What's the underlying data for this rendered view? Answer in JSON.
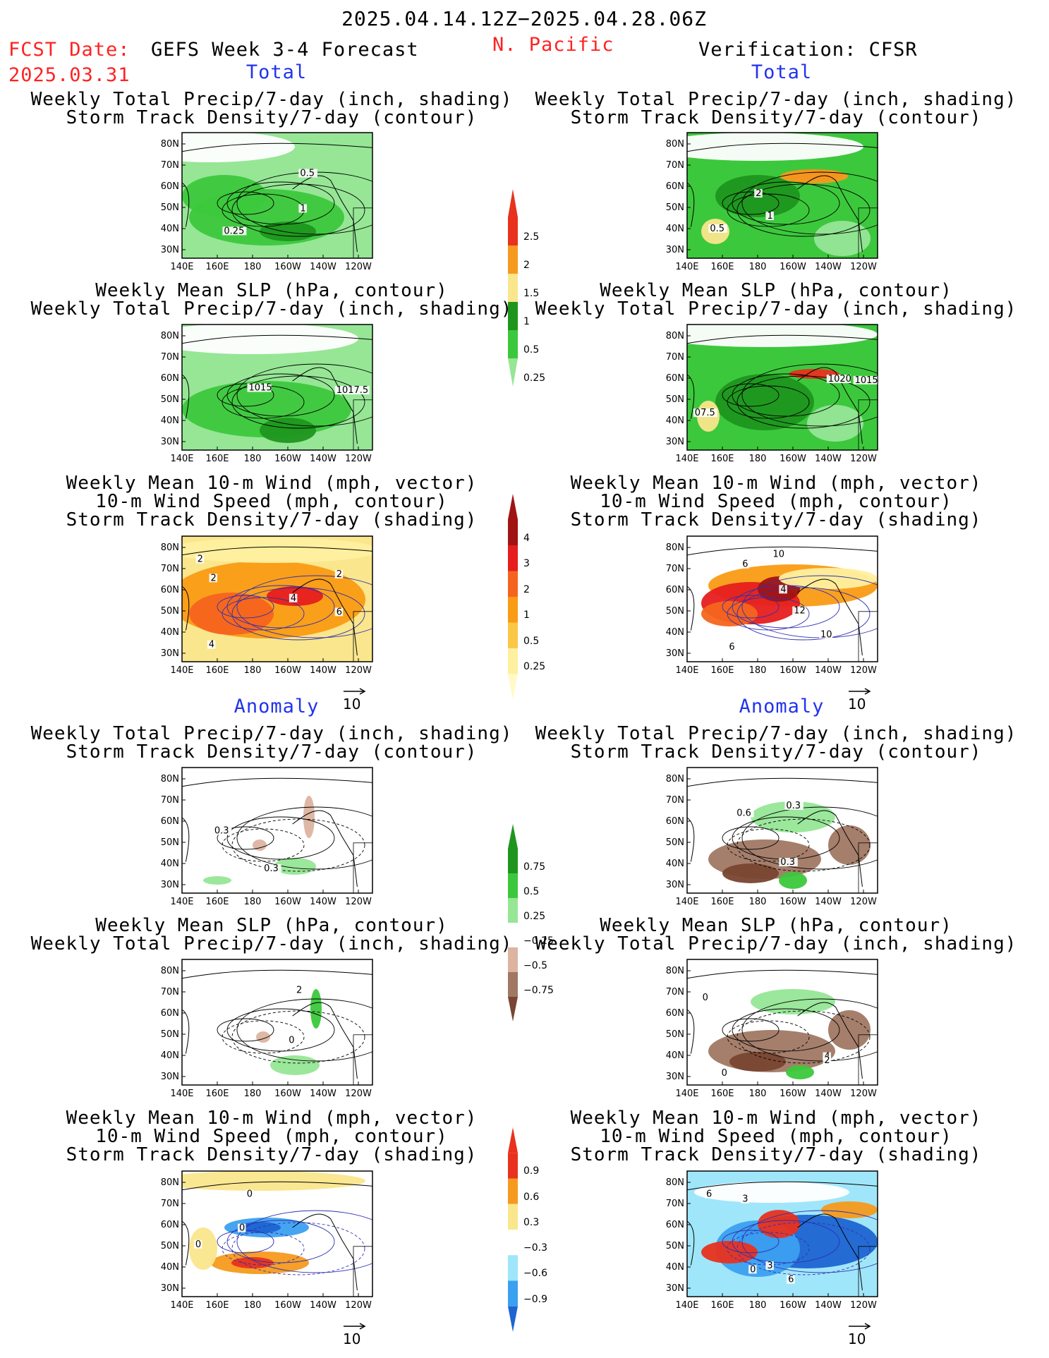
{
  "header": {
    "date_range": "2025.04.14.12Z−2025.04.28.06Z",
    "fcst_label": "FCST Date:",
    "fcst_date": "2025.03.31",
    "product": "GEFS Week 3-4 Forecast",
    "region": "N. Pacific",
    "verification": "Verification: CFSR"
  },
  "sections": {
    "total": "Total",
    "anomaly": "Anomaly"
  },
  "titles": {
    "precip_track": [
      "Weekly Total Precip/7-day (inch, shading)",
      "Storm Track Density/7-day (contour)"
    ],
    "slp_precip": [
      "Weekly Mean SLP (hPa, contour)",
      "Weekly Total Precip/7-day (inch, shading)"
    ],
    "wind_track": [
      "Weekly Mean 10-m Wind (mph, vector)",
      "10-m Wind Speed (mph, contour)",
      "Storm Track Density/7-day (shading)"
    ]
  },
  "axes": {
    "lat": [
      "80N",
      "70N",
      "60N",
      "50N",
      "40N",
      "30N"
    ],
    "lon": [
      "140E",
      "160E",
      "180",
      "160W",
      "140W",
      "120W"
    ]
  },
  "vector_ref": "10",
  "colorbars": {
    "precip_total": {
      "labels": [
        "2.5",
        "2",
        "1.5",
        "1",
        "0.5",
        "0.25"
      ],
      "colors": [
        "#e8321e",
        "#f59a1e",
        "#fae68c",
        "#1e961e",
        "#3cc83c",
        "#96e696"
      ]
    },
    "track_total": {
      "labels": [
        "4",
        "3",
        "2",
        "1",
        "0.5",
        "0.25"
      ],
      "colors": [
        "#a01414",
        "#e61e1e",
        "#f5641e",
        "#fa9b14",
        "#fac846",
        "#fff0a0",
        "#fffac8"
      ]
    },
    "precip_anom": {
      "labels": [
        "0.75",
        "0.5",
        "0.25",
        "−0.25",
        "−0.5",
        "−0.75"
      ],
      "colors": [
        "#1e961e",
        "#3cc83c",
        "#96e696",
        "#ffffff",
        "#dcb4a0",
        "#a07864",
        "#784632"
      ]
    },
    "track_anom": {
      "labels": [
        "0.9",
        "0.6",
        "0.3",
        "−0.3",
        "−0.6",
        "−0.9"
      ],
      "colors": [
        "#e8321e",
        "#f59a1e",
        "#fae68c",
        "#ffffff",
        "#a0e6fa",
        "#3ca0f0",
        "#1e64d2"
      ]
    }
  },
  "panels": [
    {
      "id": "fc-total-precip",
      "labels": [
        "0.5",
        "1",
        "0.25"
      ]
    },
    {
      "id": "ob-total-precip",
      "labels": [
        "2",
        "1",
        "0.5"
      ]
    },
    {
      "id": "fc-total-slp",
      "labels": [
        "1015",
        "1017.5"
      ]
    },
    {
      "id": "ob-total-slp",
      "labels": [
        "1020",
        "1015",
        "07.5"
      ]
    },
    {
      "id": "fc-total-wind",
      "labels": [
        "2",
        "2",
        "4",
        "2",
        "6",
        "4"
      ]
    },
    {
      "id": "ob-total-wind",
      "labels": [
        "10",
        "6",
        "4",
        "12",
        "10",
        "6"
      ]
    },
    {
      "id": "fc-anom-precip",
      "labels": [
        "0.3",
        "0.3"
      ]
    },
    {
      "id": "ob-anom-precip",
      "labels": [
        "0.6",
        "0.3",
        "0.3"
      ]
    },
    {
      "id": "fc-anom-slp",
      "labels": [
        "2",
        "0"
      ]
    },
    {
      "id": "ob-anom-slp",
      "labels": [
        "0",
        "4",
        "2",
        "0"
      ]
    },
    {
      "id": "fc-anom-wind",
      "labels": [
        "0",
        "0",
        "0"
      ]
    },
    {
      "id": "ob-anom-wind",
      "labels": [
        "6",
        "3",
        "0",
        "3",
        "6"
      ]
    }
  ]
}
